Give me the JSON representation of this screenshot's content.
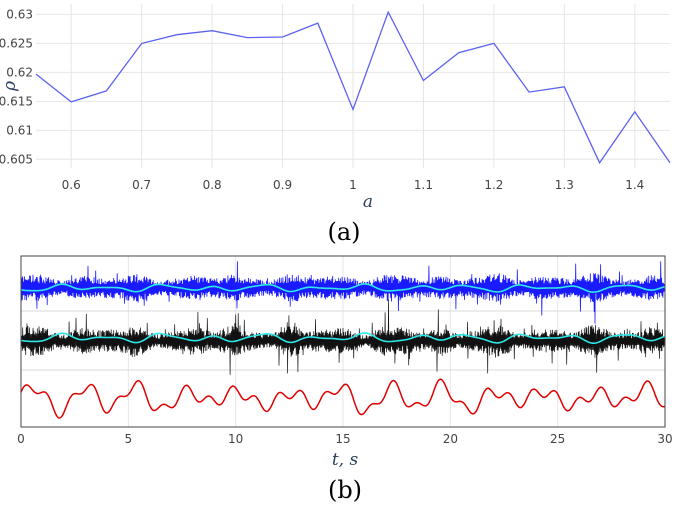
{
  "chart_data": [
    {
      "type": "line",
      "caption": "(a)",
      "xlabel": "a",
      "ylabel": "ρ",
      "xlim": [
        0.55,
        1.45
      ],
      "ylim": [
        0.6035,
        0.6318
      ],
      "x_ticks": [
        "0.6",
        "0.7",
        "0.8",
        "0.9",
        "1",
        "1.1",
        "1.2",
        "1.3",
        "1.4"
      ],
      "x_tick_values": [
        0.6,
        0.7,
        0.8,
        0.9,
        1.0,
        1.1,
        1.2,
        1.3,
        1.4
      ],
      "y_ticks": [
        "0.605",
        "0.61",
        "0.615",
        "0.62",
        "0.625",
        "0.63"
      ],
      "y_tick_values": [
        0.605,
        0.61,
        0.615,
        0.62,
        0.625,
        0.63
      ],
      "grid": true,
      "color": "#5b63f0",
      "x": [
        0.55,
        0.6,
        0.65,
        0.7,
        0.75,
        0.8,
        0.85,
        0.9,
        0.95,
        1.0,
        1.05,
        1.1,
        1.15,
        1.2,
        1.25,
        1.3,
        1.35,
        1.4,
        1.45
      ],
      "values": [
        0.6197,
        0.6149,
        0.6168,
        0.625,
        0.6265,
        0.6272,
        0.626,
        0.6261,
        0.6285,
        0.6136,
        0.6304,
        0.6186,
        0.6234,
        0.625,
        0.6166,
        0.6175,
        0.6044,
        0.6132,
        0.6044
      ]
    },
    {
      "type": "line",
      "caption": "(b)",
      "xlabel": "t, s",
      "xlim": [
        0,
        30
      ],
      "x_ticks": [
        "0",
        "5",
        "10",
        "15",
        "20",
        "25",
        "30"
      ],
      "x_tick_values": [
        0,
        5,
        10,
        15,
        20,
        25,
        30
      ],
      "grid": true,
      "colors": {
        "top_signal": "#1a1aff",
        "envelope": "#2ee8e8",
        "middle_signal": "#111111",
        "bottom_signal": "#e00000"
      }
    }
  ]
}
